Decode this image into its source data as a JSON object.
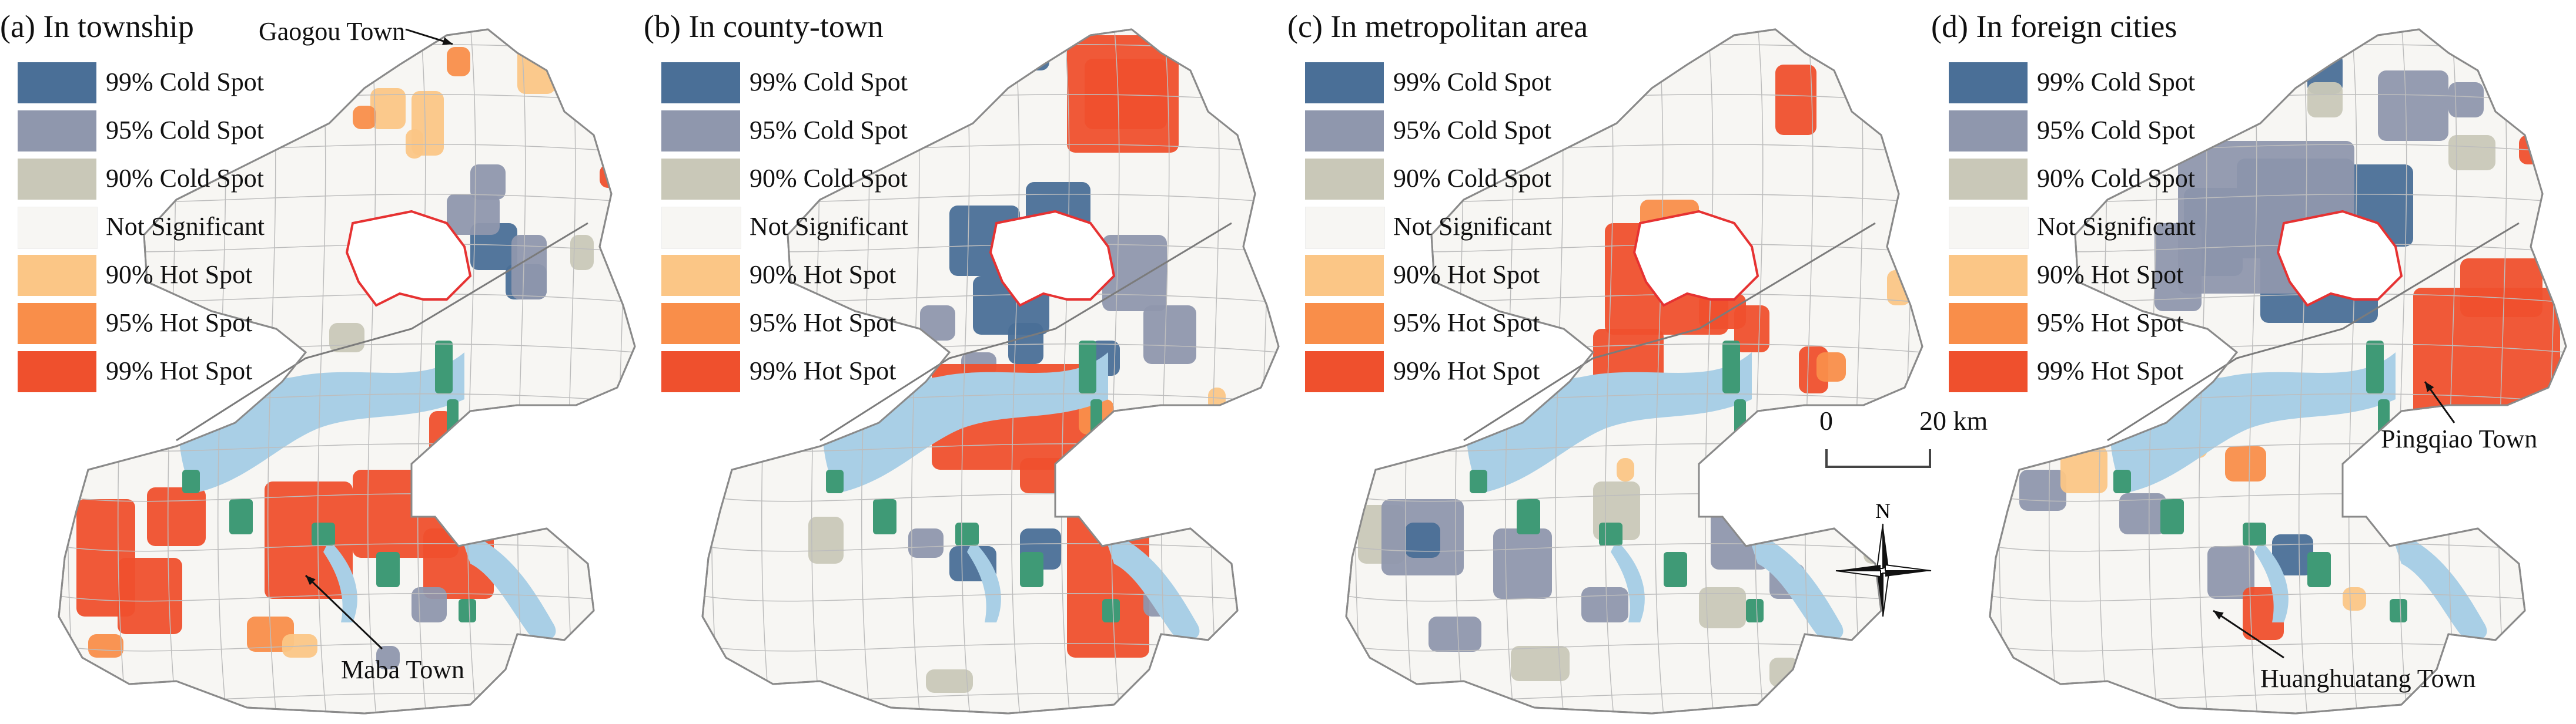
{
  "legend": {
    "classes": [
      {
        "label": "99% Cold Spot",
        "color": "#4a6f97"
      },
      {
        "label": "95% Cold Spot",
        "color": "#8f97ad"
      },
      {
        "label": "90% Cold Spot",
        "color": "#c9c8b8"
      },
      {
        "label": "Not Significant",
        "color": "#f7f6f3"
      },
      {
        "label": "90% Hot Spot",
        "color": "#fbc686"
      },
      {
        "label": "95% Hot Spot",
        "color": "#f98e4a"
      },
      {
        "label": "99% Hot Spot",
        "color": "#ef502d"
      }
    ],
    "water_color": "#a9cfe6",
    "green_color": "#3f9a76",
    "urban_outline_color": "#e63232"
  },
  "panels": [
    {
      "title": "(a) In township",
      "annotations": [
        {
          "label": "Gaogou Town"
        },
        {
          "label": "Maba Town"
        }
      ]
    },
    {
      "title": "(b) In county-town",
      "annotations": []
    },
    {
      "title": "(c) In metropolitan area",
      "annotations": []
    },
    {
      "title": "(d) In foreign cities",
      "annotations": [
        {
          "label": "Pingqiao Town"
        },
        {
          "label": "Huanghuatang Town"
        }
      ]
    }
  ],
  "scale_bar": {
    "start_label": "0",
    "end_label": "20 km"
  },
  "north_arrow": {
    "label": "N"
  }
}
